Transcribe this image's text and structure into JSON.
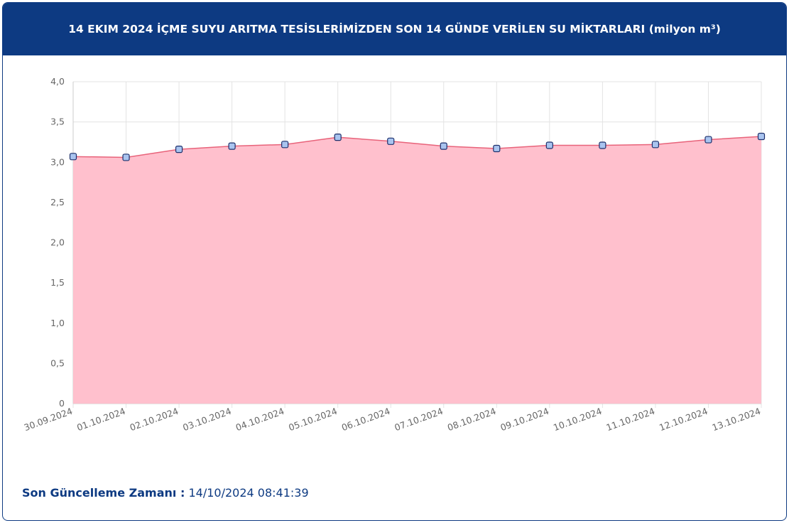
{
  "chart_data": {
    "type": "area",
    "title": "14 EKIM 2024 İÇME SUYU ARITMA TESİSLERİMİZDEN SON 14 GÜNDE VERİLEN SU MİKTARLARI (milyon m³)",
    "categories": [
      "30.09.2024",
      "01.10.2024",
      "02.10.2024",
      "03.10.2024",
      "04.10.2024",
      "05.10.2024",
      "06.10.2024",
      "07.10.2024",
      "08.10.2024",
      "09.10.2024",
      "10.10.2024",
      "11.10.2024",
      "12.10.2024",
      "13.10.2024"
    ],
    "series": [
      {
        "color": "#e8637a",
        "fill": "#ffc0cd",
        "marker_color": "#a9c4ef",
        "values": [
          3.07,
          3.06,
          3.16,
          3.2,
          3.22,
          3.31,
          3.26,
          3.2,
          3.17,
          3.21,
          3.21,
          3.22,
          3.28,
          3.32
        ]
      }
    ],
    "ylim": [
      0,
      4
    ],
    "yticks": [
      0,
      {
        "value": 0.5,
        "label": "0,5"
      },
      {
        "value": 1,
        "label": "1,0"
      },
      {
        "value": 1.5,
        "label": "1,5"
      },
      {
        "value": 2,
        "label": "2,0"
      },
      {
        "value": 2.5,
        "label": "2,5"
      },
      {
        "value": 3,
        "label": "3,0"
      },
      {
        "value": 3.5,
        "label": "3,5"
      },
      {
        "value": 4,
        "label": "4,0"
      }
    ],
    "grid": true
  },
  "footer": {
    "label": "Son Güncelleme Zamanı :",
    "value": "14/10/2024 08:41:39"
  }
}
